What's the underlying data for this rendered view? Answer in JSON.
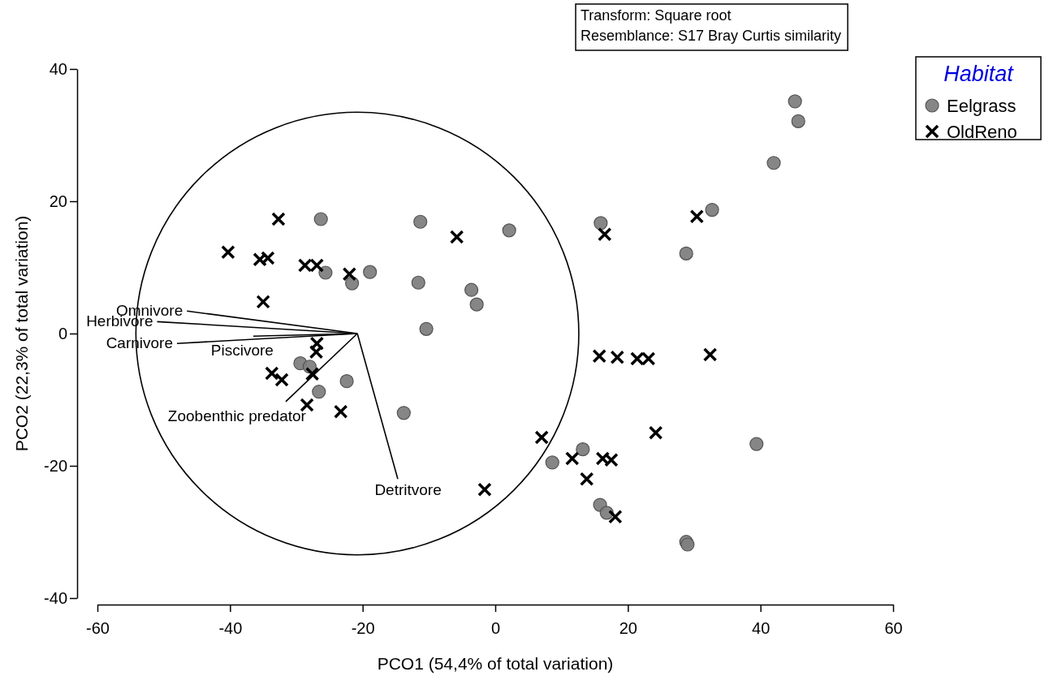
{
  "chart_data": {
    "type": "scatter",
    "xlabel": "PCO1 (54,4% of total variation)",
    "ylabel": "PCO2 (22,3% of total variation)",
    "legend_title": "Habitat",
    "legend": "top right",
    "grid": false,
    "annotations": [
      "Transform: Square root",
      "Resemblance: S17 Bray Curtis similarity"
    ],
    "xlim": [
      -60,
      60
    ],
    "xticks": [
      -60,
      -40,
      -20,
      0,
      20,
      40,
      60
    ],
    "ylim": [
      -40,
      40
    ],
    "yticks": [
      -40,
      -20,
      0,
      20,
      40
    ],
    "series": [
      {
        "name": "Eelgrass",
        "type": "scatter",
        "marker": "circle",
        "color": "#808080",
        "x": [
          45.2,
          45.7,
          42.0,
          32.7,
          28.8,
          2.1,
          15.9,
          -11.3,
          -26.3,
          -25.6,
          -21.6,
          -18.9,
          -11.6,
          -3.6,
          -2.8,
          -10.4,
          -29.4,
          -28.0,
          -26.6,
          -22.4,
          -13.8,
          13.2,
          8.6,
          15.8,
          16.8,
          28.8,
          29.0,
          39.4
        ],
        "values": [
          35.1,
          32.1,
          25.8,
          18.7,
          12.1,
          15.6,
          16.7,
          16.9,
          17.3,
          9.2,
          7.6,
          9.3,
          7.7,
          6.6,
          4.4,
          0.7,
          -4.5,
          -5.0,
          -8.8,
          -7.2,
          -12.0,
          -17.5,
          -19.5,
          -25.9,
          -27.1,
          -31.5,
          -31.9,
          -16.7
        ]
      },
      {
        "name": "OldReno",
        "type": "scatter",
        "marker": "cross",
        "color": "#000000",
        "x": [
          -40.3,
          -35.5,
          -34.3,
          -32.7,
          -28.7,
          -26.9,
          -22.0,
          -35.0,
          -5.8,
          -26.9,
          -27.0,
          -33.7,
          -32.2,
          -27.6,
          -28.4,
          -23.3,
          -1.6,
          7.0,
          11.6,
          13.8,
          16.2,
          17.5,
          18.1,
          24.2,
          15.7,
          18.4,
          21.4,
          23.1,
          32.4,
          16.5,
          30.4
        ],
        "values": [
          12.3,
          11.2,
          11.4,
          17.3,
          10.3,
          10.3,
          9.0,
          4.8,
          14.6,
          -1.5,
          -2.8,
          -6.0,
          -7.0,
          -6.1,
          -10.8,
          -11.8,
          -23.6,
          -15.7,
          -18.9,
          -22.0,
          -18.9,
          -19.1,
          -27.7,
          -15.0,
          -3.4,
          -3.6,
          -3.8,
          -3.8,
          -3.2,
          15.0,
          17.7
        ]
      },
      {
        "name": "Omnivore",
        "type": "line",
        "line_style": "solid",
        "color": "#000000",
        "x": [
          -20.8,
          -46.5
        ],
        "values": [
          0,
          3.4
        ]
      },
      {
        "name": "Herbivore",
        "type": "line",
        "line_style": "solid",
        "color": "#000000",
        "x": [
          -20.8,
          -51
        ],
        "values": [
          0,
          1.8
        ]
      },
      {
        "name": "Carnivore",
        "type": "line",
        "line_style": "solid",
        "color": "#000000",
        "x": [
          -20.8,
          -48
        ],
        "values": [
          0,
          -1.5
        ]
      },
      {
        "name": "Piscivore",
        "type": "line",
        "line_style": "solid",
        "color": "#000000",
        "x": [
          -20.8,
          -36.5
        ],
        "values": [
          0,
          -0.4
        ]
      },
      {
        "name": "Zoobenthic predator",
        "type": "line",
        "line_style": "solid",
        "color": "#000000",
        "x": [
          -20.8,
          -31.6
        ],
        "values": [
          0,
          -10.3
        ]
      },
      {
        "name": "Detritvore",
        "type": "line",
        "line_style": "solid",
        "color": "#000000",
        "x": [
          -20.8,
          -14.7
        ],
        "values": [
          0,
          -22.0
        ]
      }
    ]
  }
}
